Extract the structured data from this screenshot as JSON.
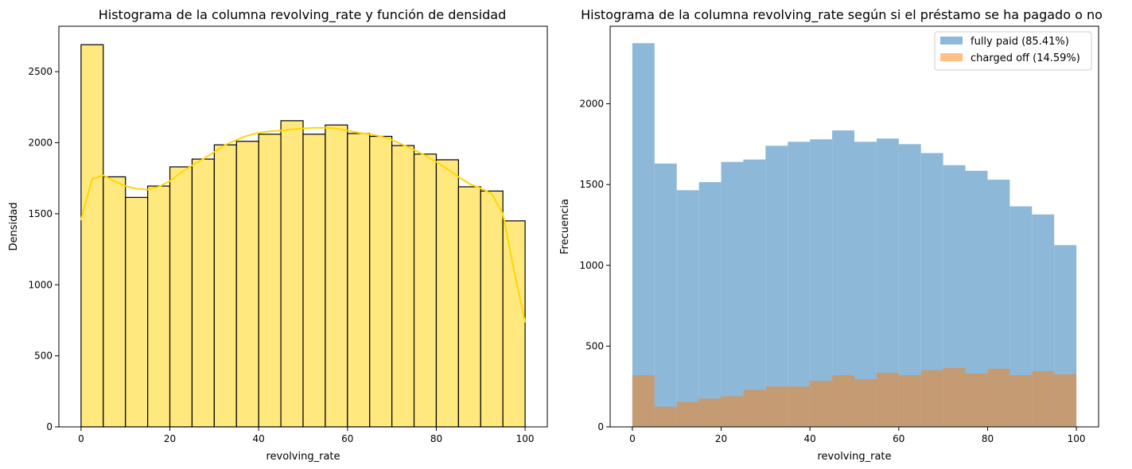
{
  "chart_data": [
    {
      "type": "bar",
      "title": "Histograma de la columna revolving_rate y función de densidad",
      "xlabel": "revolving_rate",
      "ylabel": "Densidad",
      "xlim": [
        -5,
        105
      ],
      "ylim": [
        0,
        2820
      ],
      "xticks": [
        0,
        20,
        40,
        60,
        80,
        100
      ],
      "yticks": [
        0,
        500,
        1000,
        1500,
        2000,
        2500
      ],
      "bin_edges": [
        0,
        5,
        10,
        15,
        20,
        25,
        30,
        35,
        40,
        45,
        50,
        55,
        60,
        65,
        70,
        75,
        80,
        85,
        90,
        95,
        100
      ],
      "values": [
        2690,
        1760,
        1615,
        1695,
        1830,
        1885,
        1985,
        2010,
        2060,
        2155,
        2060,
        2125,
        2065,
        2045,
        1980,
        1920,
        1880,
        1690,
        1660,
        1450
      ],
      "bar_color": "#ffe97f",
      "edge_color": "#000000",
      "kde_color": "#ffd700",
      "kde": {
        "x": [
          0,
          2.5,
          5,
          7.5,
          10,
          12.5,
          15,
          17.5,
          20,
          22.5,
          25,
          27.5,
          30,
          32.5,
          35,
          37.5,
          40,
          42.5,
          45,
          47.5,
          50,
          52.5,
          55,
          57.5,
          60,
          62.5,
          65,
          67.5,
          70,
          72.5,
          75,
          77.5,
          80,
          82.5,
          85,
          87.5,
          90,
          92.5,
          95,
          97.5,
          100
        ],
        "y": [
          1460,
          1745,
          1770,
          1730,
          1695,
          1675,
          1670,
          1690,
          1730,
          1790,
          1840,
          1885,
          1935,
          1985,
          2020,
          2050,
          2070,
          2080,
          2085,
          2095,
          2100,
          2105,
          2105,
          2100,
          2085,
          2070,
          2060,
          2045,
          2020,
          1985,
          1950,
          1910,
          1865,
          1815,
          1760,
          1710,
          1680,
          1640,
          1500,
          1100,
          740
        ]
      }
    },
    {
      "type": "bar",
      "title": "Histograma de la columna revolving_rate según si el préstamo se ha pagado o no",
      "xlabel": "revolving_rate",
      "ylabel": "Frecuencia",
      "xlim": [
        -5,
        105
      ],
      "ylim": [
        0,
        2480
      ],
      "xticks": [
        0,
        20,
        40,
        60,
        80,
        100
      ],
      "yticks": [
        0,
        500,
        1000,
        1500,
        2000
      ],
      "bin_edges": [
        0,
        5,
        10,
        15,
        20,
        25,
        30,
        35,
        40,
        45,
        50,
        55,
        60,
        65,
        70,
        75,
        80,
        85,
        90,
        95,
        100
      ],
      "series": [
        {
          "name": "fully paid (85.41%)",
          "color": "#8db8d8",
          "legend_color": "#8db8d8",
          "values": [
            2375,
            1630,
            1465,
            1515,
            1640,
            1655,
            1740,
            1765,
            1780,
            1835,
            1765,
            1785,
            1750,
            1695,
            1620,
            1585,
            1530,
            1365,
            1315,
            1125
          ]
        },
        {
          "name": "charged off (14.59%)",
          "color": "#c59b74",
          "legend_color": "#ffbf86",
          "values": [
            320,
            125,
            155,
            175,
            190,
            230,
            250,
            250,
            285,
            320,
            295,
            335,
            320,
            350,
            365,
            330,
            360,
            320,
            345,
            325
          ]
        }
      ],
      "legend_position": "top-right"
    }
  ]
}
